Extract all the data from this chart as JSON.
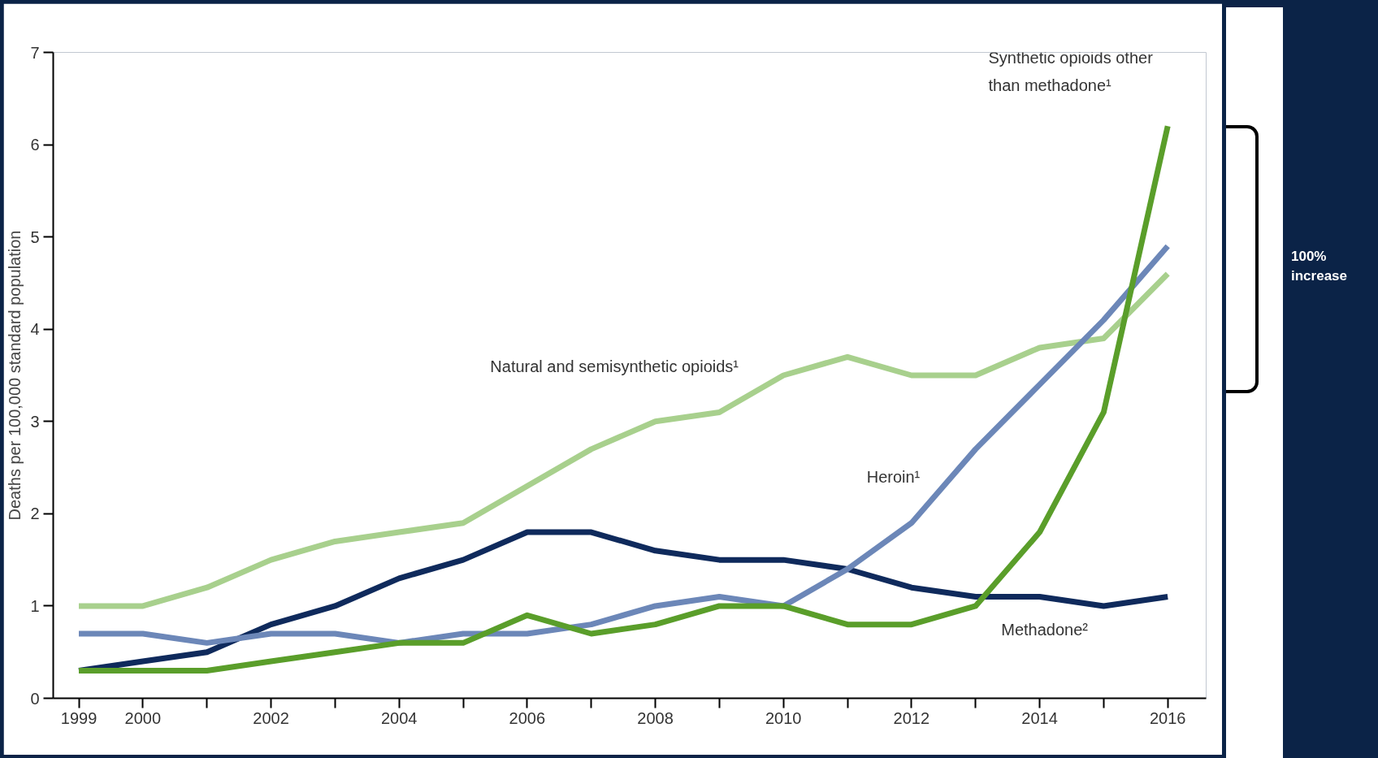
{
  "chart_data": {
    "type": "line",
    "ylabel": "Deaths per 100,000 standard population",
    "x": [
      1999,
      2000,
      2001,
      2002,
      2003,
      2004,
      2005,
      2006,
      2007,
      2008,
      2009,
      2010,
      2011,
      2012,
      2013,
      2014,
      2015,
      2016
    ],
    "series": [
      {
        "name": "Natural and semisynthetic opioids¹",
        "color": "#a8d08d",
        "values": [
          1.0,
          1.0,
          1.2,
          1.5,
          1.7,
          1.8,
          1.9,
          2.3,
          2.7,
          3.0,
          3.1,
          3.5,
          3.7,
          3.5,
          3.5,
          3.8,
          3.9,
          4.6
        ]
      },
      {
        "name": "Methadone²",
        "color": "#0f2a5c",
        "values": [
          0.3,
          0.4,
          0.5,
          0.8,
          1.0,
          1.3,
          1.5,
          1.8,
          1.8,
          1.6,
          1.5,
          1.5,
          1.4,
          1.2,
          1.1,
          1.1,
          1.0,
          1.1
        ]
      },
      {
        "name": "Heroin¹",
        "color": "#6c87b8",
        "values": [
          0.7,
          0.7,
          0.6,
          0.7,
          0.7,
          0.6,
          0.7,
          0.7,
          0.8,
          1.0,
          1.1,
          1.0,
          1.4,
          1.9,
          2.7,
          3.4,
          4.1,
          4.9
        ]
      },
      {
        "name": "Synthetic opioids other than methadone¹",
        "color": "#5a9e2a",
        "values": [
          0.3,
          0.3,
          0.3,
          0.4,
          0.5,
          0.6,
          0.6,
          0.9,
          0.7,
          0.8,
          1.0,
          1.0,
          0.8,
          0.8,
          1.0,
          1.8,
          3.1,
          6.2
        ]
      }
    ],
    "xlim": [
      1998.6,
      2016.6
    ],
    "ylim": [
      0,
      7
    ],
    "xticks": [
      1999,
      2000,
      {
        "value": 2001,
        "label": null
      },
      2002,
      {
        "value": 2003,
        "label": null
      },
      2004,
      {
        "value": 2005,
        "label": null
      },
      2006,
      {
        "value": 2007,
        "label": null
      },
      2008,
      {
        "value": 2009,
        "label": null
      },
      2010,
      {
        "value": 2011,
        "label": null
      },
      2012,
      {
        "value": 2013,
        "label": null
      },
      2014,
      {
        "value": 2015,
        "label": null
      },
      2016
    ],
    "yticks": [
      0,
      1,
      2,
      3,
      4,
      5,
      6,
      7
    ],
    "annotations": [
      "100% increase"
    ],
    "grid": false,
    "marker": "none",
    "line_style": "solid"
  }
}
